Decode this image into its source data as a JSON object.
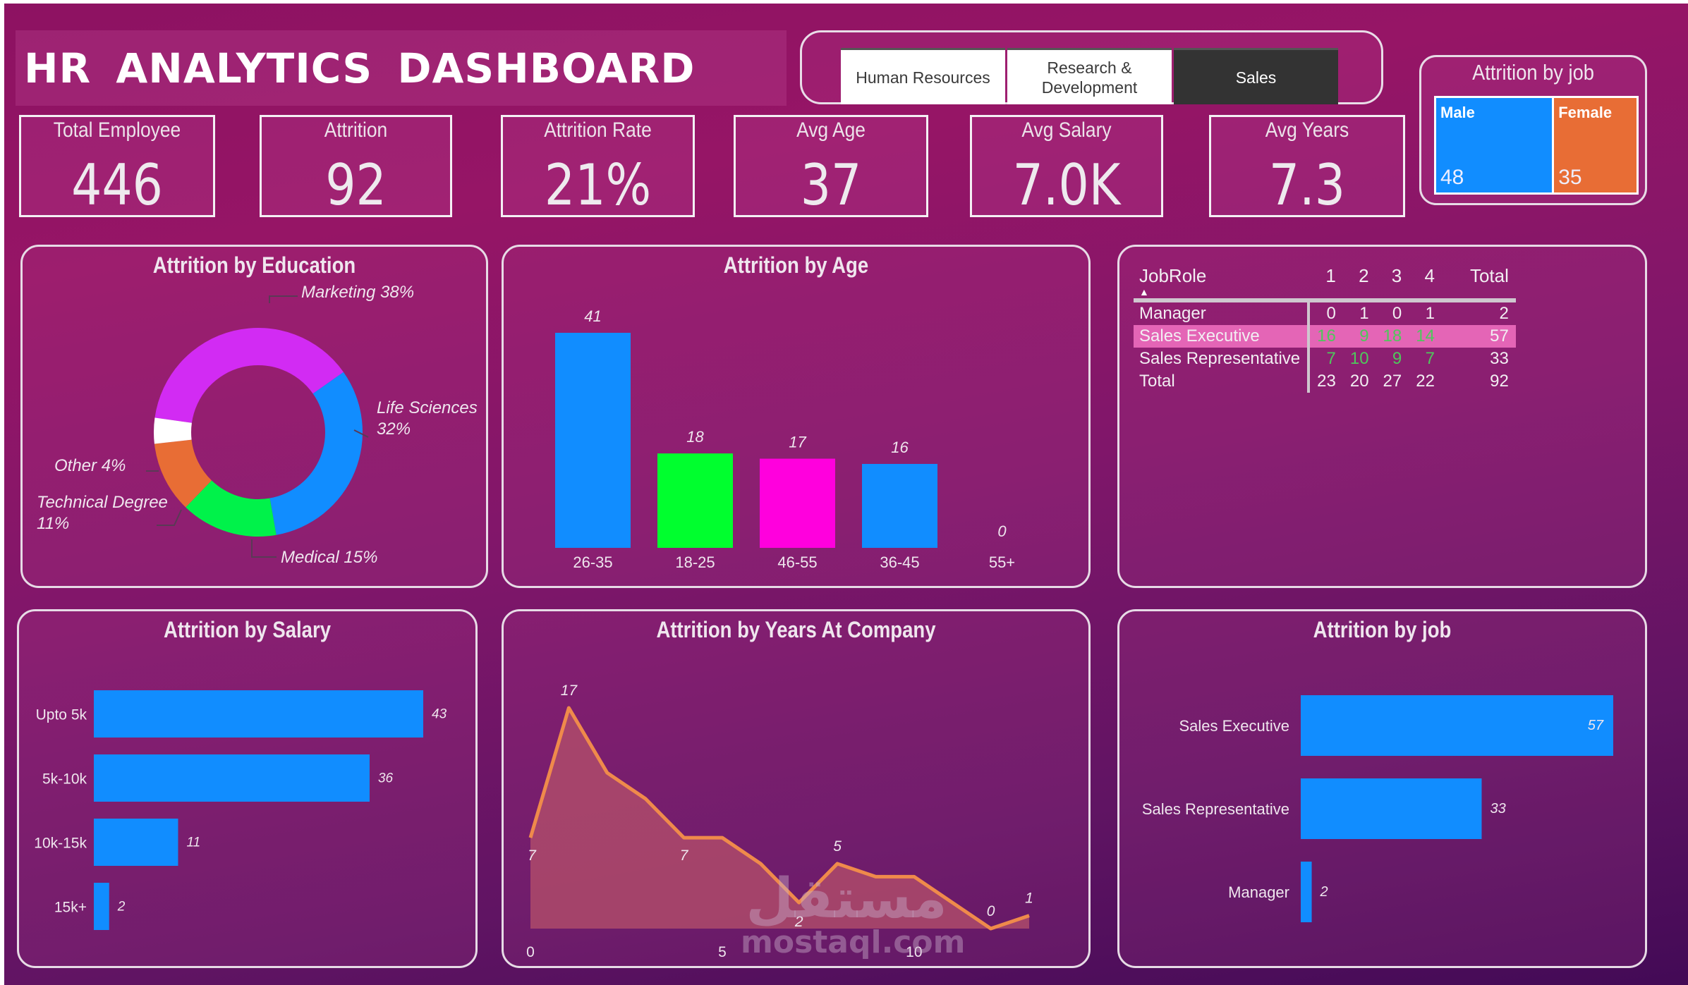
{
  "header": {
    "title": "HR ANALYTICS  DASHBOARD"
  },
  "department_slicer": {
    "options": [
      {
        "label": "Human Resources",
        "selected": false
      },
      {
        "label": "Research & Development",
        "selected": false
      },
      {
        "label": "Sales",
        "selected": true
      }
    ]
  },
  "kpis": [
    {
      "label": "Total Employee",
      "value": "446"
    },
    {
      "label": "Attrition",
      "value": "92"
    },
    {
      "label": "Attrition Rate",
      "value": "21%"
    },
    {
      "label": "Avg Age",
      "value": "37"
    },
    {
      "label": "Avg Salary",
      "value": "7.0K"
    },
    {
      "label": "Avg Years",
      "value": "7.3"
    }
  ],
  "colors": {
    "blue": "#118dff",
    "green": "#00ff2e",
    "magenta": "#ff00dd",
    "purple": "#d22bf3",
    "orange": "#e86d35",
    "white": "#ffffff",
    "line": "#ef8a4b",
    "area": "#b24d6a",
    "highlight_row": "#e465b6"
  },
  "gender_card": {
    "title": "Attrition by job",
    "items": [
      {
        "label": "Male",
        "value": 48,
        "color": "#118dff"
      },
      {
        "label": "Female",
        "value": 35,
        "color": "#e86d35"
      }
    ]
  },
  "matrix": {
    "headers": [
      "JobRole",
      "1",
      "2",
      "3",
      "4",
      "Total"
    ],
    "rows": [
      {
        "name": "Manager",
        "values": [
          "0",
          "1",
          "0",
          "1"
        ],
        "total": "2",
        "highlight": false,
        "green": false
      },
      {
        "name": "Sales Executive",
        "values": [
          "16",
          "9",
          "18",
          "14"
        ],
        "total": "57",
        "highlight": true,
        "green": true
      },
      {
        "name": "Sales Representative",
        "values": [
          "7",
          "10",
          "9",
          "7"
        ],
        "total": "33",
        "highlight": false,
        "green": true
      },
      {
        "name": "Total",
        "values": [
          "23",
          "20",
          "27",
          "22"
        ],
        "total": "92",
        "highlight": false,
        "green": false
      }
    ]
  },
  "watermark": {
    "arabic": "مستقل",
    "text": "mostaql.com"
  },
  "chart_data": [
    {
      "id": "education",
      "type": "pie",
      "title": "Attrition by Education",
      "donut": true,
      "categories": [
        "Marketing",
        "Life Sciences",
        "Medical",
        "Technical Degree",
        "Other"
      ],
      "values": [
        38,
        32,
        15,
        11,
        4
      ],
      "labels": [
        "Marketing 38%",
        "Life Sciences 32%",
        "Medical 15%",
        "Technical Degree 11%",
        "Other 4%"
      ],
      "colors": [
        "#d22bf3",
        "#118dff",
        "#00f24a",
        "#e86d35",
        "#ffffff"
      ]
    },
    {
      "id": "age",
      "type": "bar",
      "title": "Attrition by Age",
      "categories": [
        "26-35",
        "18-25",
        "46-55",
        "36-45",
        "55+"
      ],
      "values": [
        41,
        18,
        17,
        16,
        0
      ],
      "colors": [
        "#118dff",
        "#00ff2e",
        "#ff00dd",
        "#118dff",
        "#118dff"
      ],
      "ylim": [
        0,
        41
      ]
    },
    {
      "id": "salary",
      "type": "bar",
      "orientation": "horizontal",
      "title": "Attrition by Salary",
      "categories": [
        "Upto 5k",
        "5k-10k",
        "10k-15k",
        "15k+"
      ],
      "values": [
        43,
        36,
        11,
        2
      ],
      "xlim": [
        0,
        43
      ]
    },
    {
      "id": "years",
      "type": "area",
      "title": "Attrition by Years At Company",
      "x": [
        0,
        1,
        2,
        3,
        4,
        5,
        6,
        7,
        8,
        9,
        10,
        11,
        12,
        13
      ],
      "y": [
        7,
        17,
        12,
        10,
        7,
        7,
        5,
        2,
        5,
        4,
        4,
        2,
        0,
        1
      ],
      "point_labels": {
        "0": "7",
        "1": "17",
        "4": "7",
        "7": "2",
        "8": "5",
        "12": "0",
        "13": "1"
      },
      "xticks": [
        0,
        5,
        10
      ],
      "ylim": [
        0,
        17
      ]
    },
    {
      "id": "job",
      "type": "bar",
      "orientation": "horizontal",
      "title": "Attrition by job",
      "categories": [
        "Sales Executive",
        "Sales Representative",
        "Manager"
      ],
      "values": [
        57,
        33,
        2
      ],
      "xlim": [
        0,
        57
      ]
    }
  ]
}
